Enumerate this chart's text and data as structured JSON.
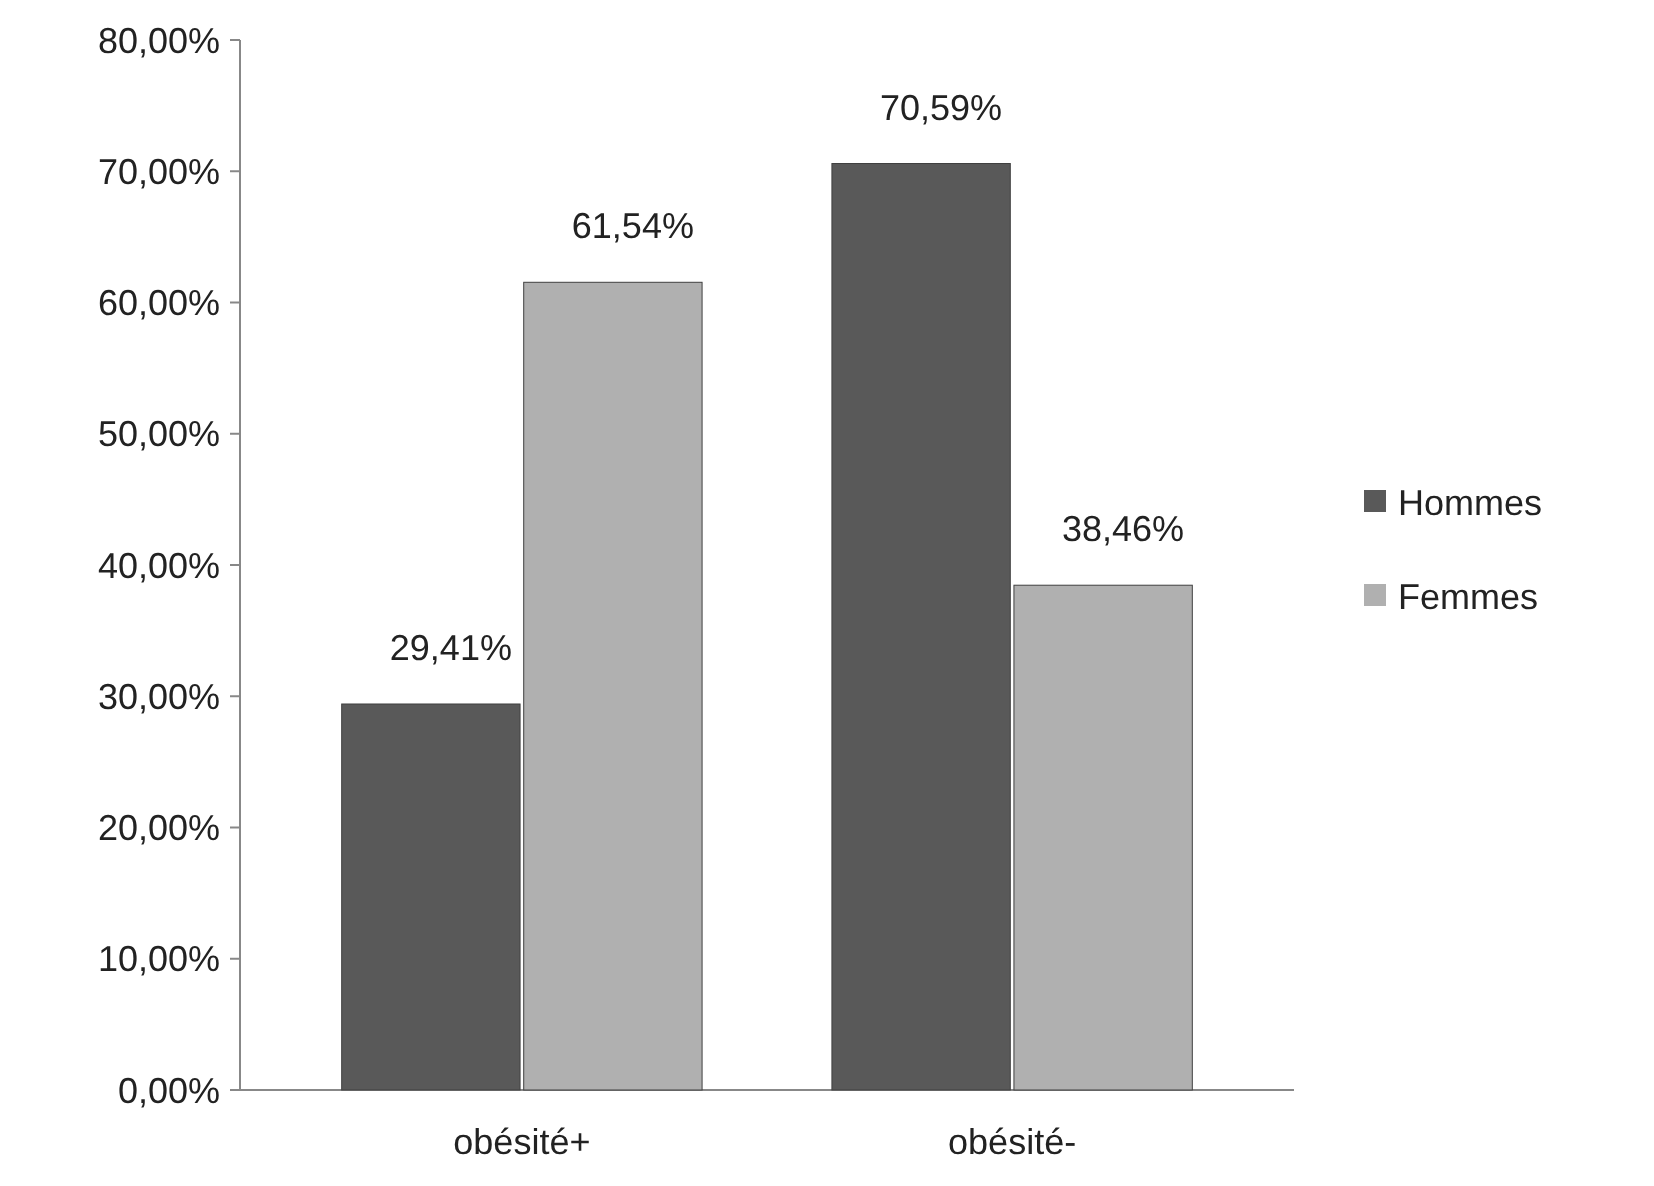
{
  "chart_data": {
    "type": "bar",
    "categories": [
      "obésité+",
      "obésité-"
    ],
    "series": [
      {
        "name": "Hommes",
        "color": "#595959",
        "values": [
          29.41,
          70.59
        ],
        "value_labels": [
          "29,41%",
          "70,59%"
        ]
      },
      {
        "name": "Femmes",
        "color": "#b0b0b0",
        "values": [
          61.54,
          38.46
        ],
        "value_labels": [
          "61,54%",
          "38,46%"
        ]
      }
    ],
    "ylim": [
      0,
      80
    ],
    "yticks": [
      {
        "value": 0,
        "label": "0,00%"
      },
      {
        "value": 10,
        "label": "10,00%"
      },
      {
        "value": 20,
        "label": "20,00%"
      },
      {
        "value": 30,
        "label": "30,00%"
      },
      {
        "value": 40,
        "label": "40,00%"
      },
      {
        "value": 50,
        "label": "50,00%"
      },
      {
        "value": 60,
        "label": "60,00%"
      },
      {
        "value": 70,
        "label": "70,00%"
      },
      {
        "value": 80,
        "label": "80,00%"
      }
    ],
    "grid": false,
    "legend": "right"
  }
}
